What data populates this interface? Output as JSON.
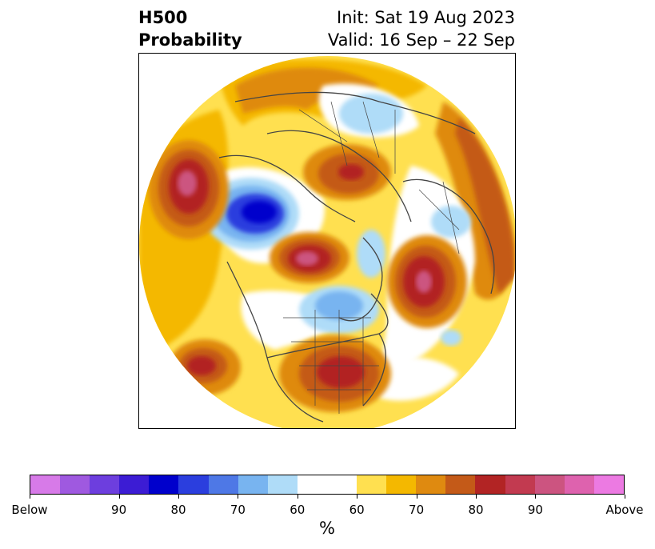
{
  "title": {
    "left_line1": "H500",
    "left_line2": "Probability",
    "right_line1": "Init: Sat 19 Aug 2023",
    "right_line2": "Valid: 16 Sep – 22 Sep"
  },
  "colorbar": {
    "colors": [
      "#d77ae8",
      "#9f59e0",
      "#6d3ede",
      "#3c1cd4",
      "#0000cc",
      "#2b3ede",
      "#4e78e6",
      "#78b4f0",
      "#afdcf8",
      "#ffffff",
      "#ffe050",
      "#f4b800",
      "#df8a10",
      "#c45a18",
      "#b22424",
      "#c23a50",
      "#cc5480",
      "#de62ae",
      "#ec7ae2"
    ],
    "labels": [
      "Below",
      "90",
      "80",
      "70",
      "60",
      "60",
      "70",
      "80",
      "90",
      "Above"
    ],
    "unit": "%"
  }
}
